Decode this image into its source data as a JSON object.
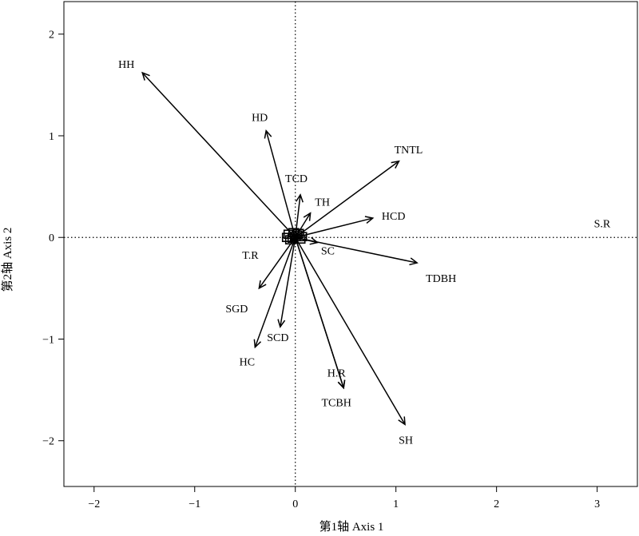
{
  "chart_data": {
    "type": "biplot",
    "xlabel": "第1轴 Axis 1",
    "ylabel": "第2轴 Axis 2",
    "xlim": [
      -2.3,
      3.4
    ],
    "ylim": [
      -2.45,
      2.32
    ],
    "x_ticks": [
      {
        "value": -2,
        "label": "−2"
      },
      {
        "value": -1,
        "label": "−1"
      },
      {
        "value": 0,
        "label": "0"
      },
      {
        "value": 1,
        "label": "1"
      },
      {
        "value": 2,
        "label": "2"
      },
      {
        "value": 3,
        "label": "3"
      }
    ],
    "y_ticks": [
      {
        "value": -2,
        "label": "−2"
      },
      {
        "value": -1,
        "label": "−1"
      },
      {
        "value": 0,
        "label": "0"
      },
      {
        "value": 1,
        "label": "1"
      },
      {
        "value": 2,
        "label": "2"
      }
    ],
    "reference_lines": {
      "x": 0,
      "y": 0,
      "style": "dotted"
    },
    "vectors": [
      {
        "name": "HH",
        "x": -1.52,
        "y": 1.62,
        "label": "HH"
      },
      {
        "name": "HD",
        "x": -0.29,
        "y": 1.05,
        "label": "HD"
      },
      {
        "name": "TCD",
        "x": 0.05,
        "y": 0.42,
        "label": "TCD"
      },
      {
        "name": "TH",
        "x": 0.15,
        "y": 0.24,
        "label": "TH"
      },
      {
        "name": "TNTL",
        "x": 1.03,
        "y": 0.75,
        "label": "TNTL"
      },
      {
        "name": "HCD",
        "x": 0.77,
        "y": 0.19,
        "label": "HCD"
      },
      {
        "name": "SC",
        "x": 0.22,
        "y": -0.05,
        "label": "SC"
      },
      {
        "name": "TDBH",
        "x": 1.21,
        "y": -0.25,
        "label": "TDBH"
      },
      {
        "name": "T.R",
        "x": -0.05,
        "y": -0.03,
        "label": "T.R"
      },
      {
        "name": "SGD",
        "x": -0.36,
        "y": -0.5,
        "label": "SGD"
      },
      {
        "name": "SCD",
        "x": -0.15,
        "y": -0.88,
        "label": "SCD"
      },
      {
        "name": "HC",
        "x": -0.4,
        "y": -1.08,
        "label": "HC"
      },
      {
        "name": "H.R",
        "x": 0.48,
        "y": -1.48,
        "label": "H.R"
      },
      {
        "name": "TCBH",
        "x": 0.48,
        "y": -1.48,
        "label": "TCBH"
      },
      {
        "name": "SH",
        "x": 1.09,
        "y": -1.84,
        "label": "SH"
      },
      {
        "name": "S.R",
        "x": 3.05,
        "y": 0.1,
        "label": "S.R"
      }
    ],
    "grid": false,
    "legend": "none"
  }
}
